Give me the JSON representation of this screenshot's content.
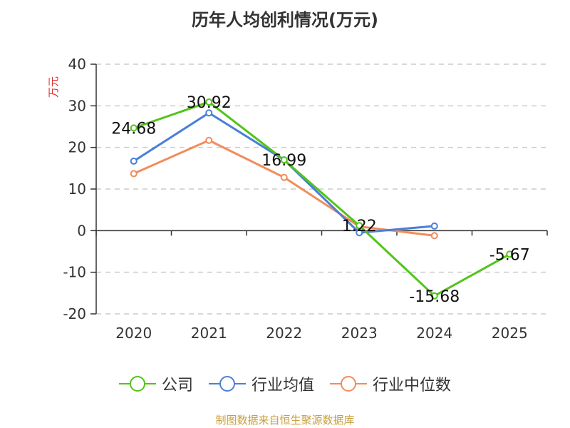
{
  "chart_data": {
    "type": "line",
    "title": "历年人均创利情况(万元)",
    "ylabel": "万元",
    "categories": [
      "2020",
      "2021",
      "2022",
      "2023",
      "2024",
      "2025"
    ],
    "ylim": [
      -20,
      40
    ],
    "yticks": [
      40,
      30,
      20,
      10,
      0,
      -10,
      -20
    ],
    "grid": true,
    "legend_position": "bottom",
    "series": [
      {
        "name": "公司",
        "color": "#52c41a",
        "values": [
          24.68,
          30.92,
          16.99,
          1.22,
          -15.68,
          -5.67
        ],
        "labels": [
          "24.68",
          "30.92",
          "16.99",
          "1.22",
          "-15.68",
          "-5.67"
        ]
      },
      {
        "name": "行业均值",
        "color": "#4a7fd8",
        "values": [
          16.7,
          28.3,
          17.0,
          -0.5,
          1.1,
          null
        ]
      },
      {
        "name": "行业中位数",
        "color": "#f28c5a",
        "values": [
          13.7,
          21.7,
          12.8,
          1.0,
          -1.2,
          null
        ]
      }
    ]
  },
  "footer": {
    "source": "制图数据来自恒生聚源数据库"
  }
}
